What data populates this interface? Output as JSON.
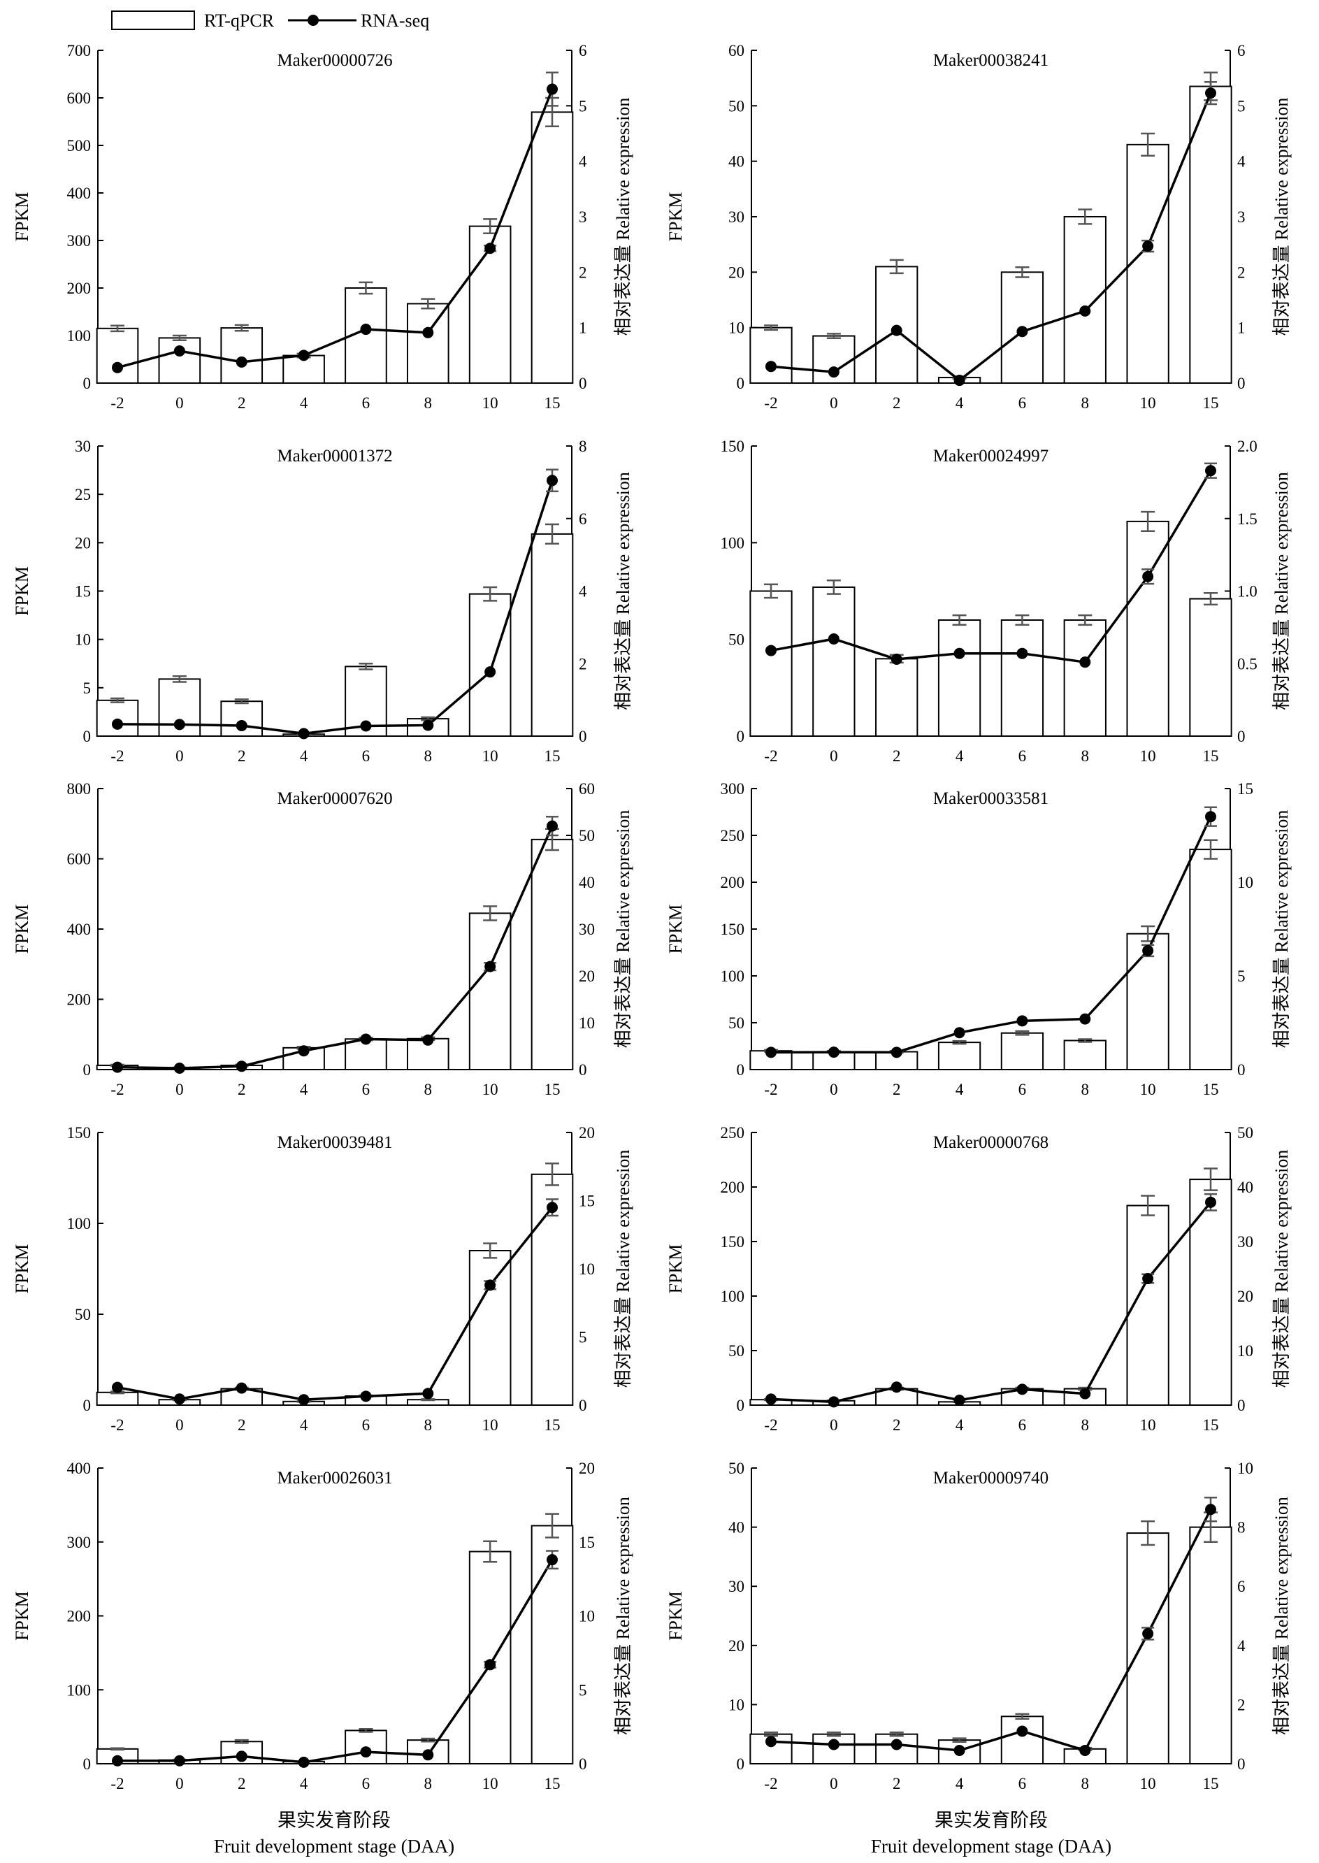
{
  "legend": {
    "bar_label": "RT-qPCR",
    "line_label": "RNA-seq"
  },
  "xlabel_zh": "果实发育阶段",
  "xlabel_en": "Fruit development stage (DAA)",
  "colors": {
    "bar_fill": "#ffffff",
    "bar_stroke": "#000000",
    "line": "#000000",
    "error_bar": "#555555"
  },
  "chart_data": [
    {
      "type": "bar",
      "title": "Maker00000726",
      "categories": [
        "-2",
        "0",
        "2",
        "4",
        "6",
        "8",
        "10",
        "15"
      ],
      "ylabel_left": "FPKM",
      "ylabel_right": "相对表达量 Relative expression",
      "ylim_left": [
        0,
        700
      ],
      "yticks_left": [
        0,
        100,
        200,
        300,
        400,
        500,
        600,
        700
      ],
      "ylim_right": [
        0,
        6
      ],
      "yticks_right": [
        0,
        1,
        2,
        3,
        4,
        5,
        6
      ],
      "series": [
        {
          "name": "RT-qPCR",
          "axis": "left",
          "values": [
            115,
            95,
            116,
            58,
            200,
            167,
            330,
            570
          ],
          "errors": [
            6,
            5,
            6,
            4,
            12,
            10,
            15,
            30
          ]
        },
        {
          "name": "RNA-seq",
          "axis": "right",
          "values": [
            0.28,
            0.58,
            0.38,
            0.5,
            0.97,
            0.91,
            2.43,
            5.3
          ],
          "errors": [
            0,
            0,
            0,
            0,
            0,
            0,
            0.05,
            0.3
          ]
        }
      ]
    },
    {
      "type": "bar",
      "title": "Maker00038241",
      "categories": [
        "-2",
        "0",
        "2",
        "4",
        "6",
        "8",
        "10",
        "15"
      ],
      "ylabel_left": "FPKM",
      "ylabel_right": "相对表达量 Relative expression",
      "ylim_left": [
        0,
        60
      ],
      "yticks_left": [
        0,
        10,
        20,
        30,
        40,
        50,
        60
      ],
      "ylim_right": [
        0,
        6
      ],
      "yticks_right": [
        0,
        1,
        2,
        3,
        4,
        5,
        6
      ],
      "series": [
        {
          "name": "RT-qPCR",
          "axis": "left",
          "values": [
            10,
            8.5,
            21,
            1,
            20,
            30,
            43,
            53.5
          ],
          "errors": [
            0.4,
            0.4,
            1.2,
            0.2,
            0.9,
            1.3,
            2,
            2.5
          ]
        },
        {
          "name": "RNA-seq",
          "axis": "right",
          "values": [
            0.3,
            0.2,
            0.95,
            0.05,
            0.93,
            1.3,
            2.47,
            5.23
          ],
          "errors": [
            0,
            0,
            0,
            0,
            0,
            0,
            0.1,
            0.2
          ]
        }
      ]
    },
    {
      "type": "bar",
      "title": "Maker00001372",
      "categories": [
        "-2",
        "0",
        "2",
        "4",
        "6",
        "8",
        "10",
        "15"
      ],
      "ylabel_left": "FPKM",
      "ylabel_right": "相对表达量 Relative expression",
      "ylim_left": [
        0,
        30
      ],
      "yticks_left": [
        0,
        5,
        10,
        15,
        20,
        25,
        30
      ],
      "ylim_right": [
        0,
        8
      ],
      "yticks_right": [
        0,
        2,
        4,
        6,
        8
      ],
      "series": [
        {
          "name": "RT-qPCR",
          "axis": "left",
          "values": [
            3.7,
            5.9,
            3.6,
            0.2,
            7.2,
            1.8,
            14.7,
            20.9
          ],
          "errors": [
            0.2,
            0.3,
            0.2,
            0.1,
            0.3,
            0.15,
            0.7,
            1
          ]
        },
        {
          "name": "RNA-seq",
          "axis": "right",
          "values": [
            0.33,
            0.32,
            0.29,
            0.07,
            0.28,
            0.3,
            1.77,
            7.05
          ],
          "errors": [
            0,
            0,
            0,
            0,
            0,
            0,
            0,
            0.3
          ]
        }
      ]
    },
    {
      "type": "bar",
      "title": "Maker00024997",
      "categories": [
        "-2",
        "0",
        "2",
        "4",
        "6",
        "8",
        "10",
        "15"
      ],
      "ylabel_left": "",
      "ylabel_right": "相对表达量 Relative expression",
      "ylim_left": [
        0,
        150
      ],
      "yticks_left": [
        0,
        50,
        100,
        150
      ],
      "ylim_right": [
        0,
        2.0
      ],
      "yticks_right": [
        "0",
        "0.5",
        "1.0",
        "1.5",
        "2.0"
      ],
      "series": [
        {
          "name": "RT-qPCR",
          "axis": "left",
          "values": [
            75,
            77,
            40,
            60,
            60,
            60,
            111,
            71
          ],
          "errors": [
            3.5,
            3.5,
            2,
            2.5,
            2.5,
            2.5,
            5,
            3
          ]
        },
        {
          "name": "RNA-seq",
          "axis": "right",
          "values": [
            0.59,
            0.67,
            0.53,
            0.57,
            0.57,
            0.51,
            1.1,
            1.83
          ],
          "errors": [
            0,
            0,
            0,
            0,
            0,
            0,
            0.05,
            0.05
          ]
        }
      ]
    },
    {
      "type": "bar",
      "title": "Maker00007620",
      "categories": [
        "-2",
        "0",
        "2",
        "4",
        "6",
        "8",
        "10",
        "15"
      ],
      "ylabel_left": "FPKM",
      "ylabel_right": "相对表达量 Relative expression",
      "ylim_left": [
        0,
        800
      ],
      "yticks_left": [
        0,
        200,
        400,
        600,
        800
      ],
      "ylim_right": [
        0,
        60
      ],
      "yticks_right": [
        0,
        10,
        20,
        30,
        40,
        50,
        60
      ],
      "series": [
        {
          "name": "RT-qPCR",
          "axis": "left",
          "values": [
            12,
            5,
            12,
            62,
            87,
            88,
            445,
            655
          ],
          "errors": [
            2,
            1,
            2,
            3,
            4,
            4,
            20,
            30
          ]
        },
        {
          "name": "RNA-seq",
          "axis": "right",
          "values": [
            0.5,
            0.3,
            0.7,
            4,
            6.5,
            6.3,
            22,
            52
          ],
          "errors": [
            0,
            0,
            0,
            0,
            0,
            0,
            0.8,
            2
          ]
        }
      ]
    },
    {
      "type": "bar",
      "title": "Maker00033581",
      "categories": [
        "-2",
        "0",
        "2",
        "4",
        "6",
        "8",
        "10",
        "15"
      ],
      "ylabel_left": "FPKM",
      "ylabel_right": "相对表达量 Relative expression",
      "ylim_left": [
        0,
        300
      ],
      "yticks_left": [
        0,
        50,
        100,
        150,
        200,
        250,
        300
      ],
      "ylim_right": [
        0,
        15
      ],
      "yticks_right": [
        0,
        5,
        10,
        15
      ],
      "series": [
        {
          "name": "RT-qPCR",
          "axis": "left",
          "values": [
            20,
            19,
            19,
            29,
            39,
            31,
            145,
            235
          ],
          "errors": [
            1,
            1,
            1,
            1.5,
            2,
            1.5,
            8,
            10
          ]
        },
        {
          "name": "RNA-seq",
          "axis": "right",
          "values": [
            0.92,
            0.93,
            0.92,
            1.97,
            2.6,
            2.7,
            6.35,
            13.5
          ],
          "errors": [
            0,
            0,
            0,
            0,
            0,
            0,
            0.3,
            0.5
          ]
        }
      ]
    },
    {
      "type": "bar",
      "title": "Maker00039481",
      "categories": [
        "-2",
        "0",
        "2",
        "4",
        "6",
        "8",
        "10",
        "15"
      ],
      "ylabel_left": "FPKM",
      "ylabel_right": "相对表达量 Relative expression",
      "ylim_left": [
        0,
        150
      ],
      "yticks_left": [
        0,
        50,
        100,
        150
      ],
      "ylim_right": [
        0,
        20
      ],
      "yticks_right": [
        0,
        5,
        10,
        15,
        20
      ],
      "series": [
        {
          "name": "RT-qPCR",
          "axis": "left",
          "values": [
            7,
            3,
            9,
            2,
            5,
            3,
            85,
            127
          ],
          "errors": [
            0.5,
            0.3,
            0.6,
            0.2,
            0.4,
            0.3,
            4,
            6
          ]
        },
        {
          "name": "RNA-seq",
          "axis": "right",
          "values": [
            1.3,
            0.45,
            1.25,
            0.4,
            0.65,
            0.85,
            8.8,
            14.5
          ],
          "errors": [
            0,
            0,
            0,
            0,
            0,
            0,
            0.3,
            0.6
          ]
        }
      ]
    },
    {
      "type": "bar",
      "title": "Maker00000768",
      "categories": [
        "-2",
        "0",
        "2",
        "4",
        "6",
        "8",
        "10",
        "15"
      ],
      "ylabel_left": "FPKM",
      "ylabel_right": "相对表达量 Relative expression",
      "ylim_left": [
        0,
        250
      ],
      "yticks_left": [
        0,
        50,
        100,
        150,
        200,
        250
      ],
      "ylim_right": [
        0,
        50
      ],
      "yticks_right": [
        0,
        10,
        20,
        30,
        40,
        50
      ],
      "series": [
        {
          "name": "RT-qPCR",
          "axis": "left",
          "values": [
            5,
            4,
            15,
            3,
            15,
            15,
            183,
            207
          ],
          "errors": [
            0.5,
            0.4,
            1,
            0.3,
            1,
            1,
            9,
            10
          ]
        },
        {
          "name": "RNA-seq",
          "axis": "right",
          "values": [
            1.1,
            0.6,
            3.3,
            0.9,
            2.9,
            2.1,
            23.2,
            37.2
          ],
          "errors": [
            0,
            0,
            0,
            0,
            0,
            0,
            0.8,
            1.5
          ]
        }
      ]
    },
    {
      "type": "bar",
      "title": "Maker00026031",
      "categories": [
        "-2",
        "0",
        "2",
        "4",
        "6",
        "8",
        "10",
        "15"
      ],
      "ylabel_left": "FPKM",
      "ylabel_right": "相对表达量 Relative expression",
      "ylim_left": [
        0,
        400
      ],
      "yticks_left": [
        0,
        100,
        200,
        300,
        400
      ],
      "ylim_right": [
        0,
        20
      ],
      "yticks_right": [
        0,
        5,
        10,
        15,
        20
      ],
      "series": [
        {
          "name": "RT-qPCR",
          "axis": "left",
          "values": [
            20,
            5,
            30,
            3,
            45,
            32,
            287,
            322
          ],
          "errors": [
            1,
            0.5,
            2,
            0.3,
            2,
            2,
            14,
            16
          ]
        },
        {
          "name": "RNA-seq",
          "axis": "right",
          "values": [
            0.2,
            0.2,
            0.5,
            0.1,
            0.8,
            0.6,
            6.7,
            13.8
          ],
          "errors": [
            0,
            0,
            0,
            0,
            0,
            0,
            0.2,
            0.6
          ]
        }
      ]
    },
    {
      "type": "bar",
      "title": "Maker00009740",
      "categories": [
        "-2",
        "0",
        "2",
        "4",
        "6",
        "8",
        "10",
        "15"
      ],
      "ylabel_left": "FPKM",
      "ylabel_right": "相对表达量 Relative expression",
      "ylim_left": [
        0,
        50
      ],
      "yticks_left": [
        0,
        10,
        20,
        30,
        40,
        50
      ],
      "ylim_right": [
        0,
        10
      ],
      "yticks_right": [
        0,
        2,
        4,
        6,
        8,
        10
      ],
      "series": [
        {
          "name": "RT-qPCR",
          "axis": "left",
          "values": [
            5,
            5,
            5,
            4,
            8,
            2.5,
            39,
            40
          ],
          "errors": [
            0.3,
            0.3,
            0.3,
            0.3,
            0.4,
            0.2,
            2,
            2.5
          ]
        },
        {
          "name": "RNA-seq",
          "axis": "right",
          "values": [
            0.75,
            0.65,
            0.65,
            0.45,
            1.1,
            0.45,
            4.4,
            8.6
          ],
          "errors": [
            0,
            0,
            0,
            0,
            0,
            0,
            0.2,
            0.4
          ]
        }
      ]
    }
  ]
}
